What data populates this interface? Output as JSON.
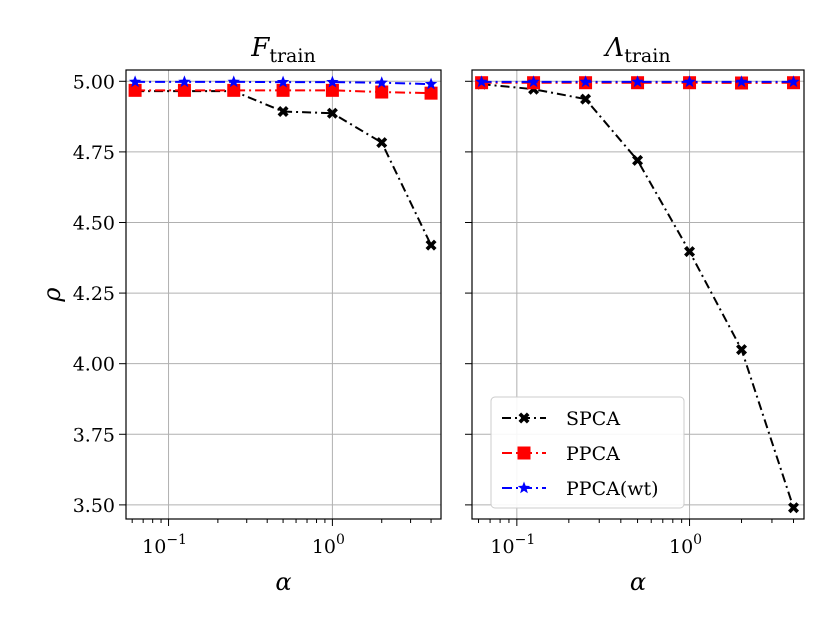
{
  "figure": {
    "legend_position": "lower-left (right panel)",
    "colors": {
      "SPCA": "#000000",
      "PPCA": "#ff0000",
      "PPCA(wt)": "#0000ff",
      "grid": "#b0b0b0"
    }
  },
  "chart_data": [
    {
      "type": "line",
      "title": "F_train",
      "title_main": "F",
      "title_sub": "train",
      "xlabel": "α",
      "ylabel": "ρ",
      "xscale": "log",
      "xlim": [
        0.055,
        4.6
      ],
      "ylim": [
        3.45,
        5.04
      ],
      "xtick_labels": [
        {
          "value": 0.1,
          "base": "10",
          "exp": "−1"
        },
        {
          "value": 1,
          "base": "10",
          "exp": "0"
        }
      ],
      "ytick_labels": [
        "5.00",
        "4.75",
        "4.50",
        "4.25",
        "4.00",
        "3.75",
        "3.50"
      ],
      "yticks": [
        5.0,
        4.75,
        4.5,
        4.25,
        4.0,
        3.75,
        3.5
      ],
      "grid": true,
      "x": [
        0.0625,
        0.125,
        0.25,
        0.5,
        1,
        2,
        4
      ],
      "series": [
        {
          "name": "SPCA",
          "marker": "x",
          "values": [
            4.965,
            4.965,
            4.965,
            4.893,
            4.887,
            4.783,
            4.42
          ]
        },
        {
          "name": "PPCA",
          "marker": "square",
          "values": [
            4.968,
            4.968,
            4.968,
            4.968,
            4.968,
            4.962,
            4.958
          ]
        },
        {
          "name": "PPCA(wt)",
          "marker": "star",
          "values": [
            4.998,
            4.998,
            4.998,
            4.997,
            4.997,
            4.995,
            4.99
          ]
        }
      ]
    },
    {
      "type": "line",
      "title": "Λ_train",
      "title_main": "Λ",
      "title_sub": "train",
      "xlabel": "α",
      "ylabel": "",
      "xscale": "log",
      "xlim": [
        0.055,
        4.6
      ],
      "ylim": [
        3.45,
        5.04
      ],
      "xtick_labels": [
        {
          "value": 0.1,
          "base": "10",
          "exp": "−1"
        },
        {
          "value": 1,
          "base": "10",
          "exp": "0"
        }
      ],
      "ytick_labels": [],
      "yticks": [
        5.0,
        4.75,
        4.5,
        4.25,
        4.0,
        3.75,
        3.5
      ],
      "grid": true,
      "x": [
        0.0625,
        0.125,
        0.25,
        0.5,
        1,
        2,
        4
      ],
      "series": [
        {
          "name": "SPCA",
          "marker": "x",
          "values": [
            4.99,
            4.972,
            4.937,
            4.72,
            4.397,
            4.05,
            3.49
          ]
        },
        {
          "name": "PPCA",
          "marker": "square",
          "values": [
            4.995,
            4.995,
            4.995,
            4.995,
            4.995,
            4.994,
            4.995
          ]
        },
        {
          "name": "PPCA(wt)",
          "marker": "star",
          "values": [
            4.998,
            4.998,
            4.998,
            4.998,
            4.998,
            4.998,
            4.998
          ]
        }
      ],
      "legend": [
        "SPCA",
        "PPCA",
        "PPCA(wt)"
      ]
    }
  ]
}
